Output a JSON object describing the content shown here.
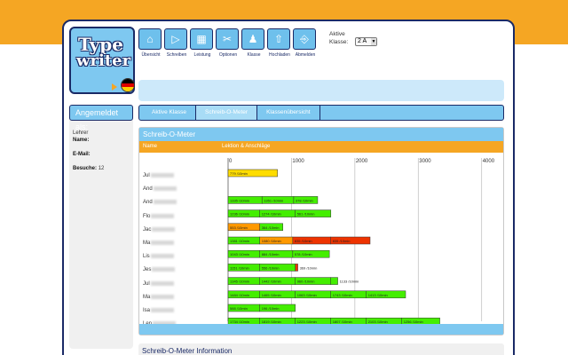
{
  "logo": {
    "line1": "Type",
    "line2": "writer"
  },
  "flag_colors": [
    "#000000",
    "#dd0000",
    "#ffce00"
  ],
  "nav": [
    {
      "label": "Übersicht",
      "icon": "home-icon",
      "glyph": "⌂"
    },
    {
      "label": "Schreiben",
      "icon": "play-icon",
      "glyph": "▷"
    },
    {
      "label": "Leistung",
      "icon": "blocks-icon",
      "glyph": "▦"
    },
    {
      "label": "Optionen",
      "icon": "tools-icon",
      "glyph": "✂"
    },
    {
      "label": "Klasse",
      "icon": "people-icon",
      "glyph": "♟"
    },
    {
      "label": "Hochladen",
      "icon": "upload-icon",
      "glyph": "⇧"
    },
    {
      "label": "Abmelden",
      "icon": "logout-icon",
      "glyph": "⎆"
    }
  ],
  "class_selector": {
    "label_line1": "Aktive",
    "label_line2": "Klasse:",
    "value": "2 A"
  },
  "sidebar": {
    "heading": "Angemeldet als:",
    "role": "Lehrer",
    "name_label": "Name:",
    "email_label": "E-Mail:",
    "visits_label": "Besuche:",
    "visits_value": "12"
  },
  "tabs": [
    {
      "label": "Aktive Klasse",
      "active": false
    },
    {
      "label": "Schreib-O-Meter",
      "active": true
    },
    {
      "label": "Klassenübersicht",
      "active": false
    }
  ],
  "chart_title": "Schreib-O-Meter",
  "columns": {
    "name": "Name",
    "lesson": "Lektion & Anschläge"
  },
  "info_title": "Schreib-O-Meter Information",
  "chart_data": {
    "type": "bar",
    "stacked": true,
    "xlim": [
      0,
      4200
    ],
    "ticks": [
      0,
      1000,
      2000,
      3000,
      4000
    ],
    "grid": true,
    "colors": {
      "green": "#44ee00",
      "yellow": "#ffdd00",
      "orange": "#ff9900",
      "red": "#ee3300"
    },
    "rows": [
      {
        "name": "Jul",
        "segments": [
          {
            "value": 779,
            "label": "779 /10min",
            "color": "yellow"
          }
        ]
      },
      {
        "name": "And",
        "segments": []
      },
      {
        "name": "And",
        "segments": [
          {
            "value": 535,
            "label": "1335 /10min",
            "color": "green"
          },
          {
            "value": 500,
            "label": "1351 /10min",
            "color": "green"
          },
          {
            "value": 378,
            "label": "378 /10min",
            "color": "green"
          }
        ]
      },
      {
        "name": "Flo",
        "segments": [
          {
            "value": 500,
            "label": "1236 /10min",
            "color": "green"
          },
          {
            "value": 560,
            "label": "1274 /10min",
            "color": "green"
          },
          {
            "value": 561,
            "label": "561 /10min",
            "color": "green"
          }
        ]
      },
      {
        "name": "Jac",
        "segments": [
          {
            "value": 500,
            "label": "553 /10min",
            "color": "orange"
          },
          {
            "value": 364,
            "label": "364 /10min",
            "color": "green"
          }
        ]
      },
      {
        "name": "Ma",
        "segments": [
          {
            "value": 500,
            "label": "1381 /10min",
            "color": "green"
          },
          {
            "value": 520,
            "label": "1080 /10min",
            "color": "orange"
          },
          {
            "value": 600,
            "label": "835 /10min",
            "color": "red"
          },
          {
            "value": 620,
            "label": "835 /10min",
            "color": "red"
          }
        ]
      },
      {
        "name": "Lis",
        "segments": [
          {
            "value": 500,
            "label": "1043 /10min",
            "color": "green"
          },
          {
            "value": 520,
            "label": "884 /10min",
            "color": "green"
          },
          {
            "value": 578,
            "label": "578 /10min",
            "color": "green"
          }
        ]
      },
      {
        "name": "Jes",
        "segments": [
          {
            "value": 500,
            "label": "1151 /10min",
            "color": "green"
          },
          {
            "value": 560,
            "label": "556 /10min",
            "color": "green"
          },
          {
            "value": 40,
            "label": "",
            "color": "red"
          }
        ],
        "trailing": "369 /10min"
      },
      {
        "name": "Jul",
        "segments": [
          {
            "value": 500,
            "label": "1345 /10min",
            "color": "green"
          },
          {
            "value": 560,
            "label": "1442 /10min",
            "color": "green"
          },
          {
            "value": 560,
            "label": "960 /10min",
            "color": "green"
          },
          {
            "value": 110,
            "label": "",
            "color": "green"
          }
        ],
        "trailing": "1133 /10min"
      },
      {
        "name": "Ma",
        "segments": [
          {
            "value": 500,
            "label": "1484 /10min",
            "color": "green"
          },
          {
            "value": 560,
            "label": "1465 /10min",
            "color": "green"
          },
          {
            "value": 560,
            "label": "1063 /10min",
            "color": "green"
          },
          {
            "value": 560,
            "label": "1743 /10min",
            "color": "green"
          },
          {
            "value": 620,
            "label": "1413 /10min",
            "color": "green"
          }
        ]
      },
      {
        "name": "Isa",
        "segments": [
          {
            "value": 500,
            "label": "588 /10min",
            "color": "green"
          },
          {
            "value": 560,
            "label": "196 /10min",
            "color": "green"
          }
        ]
      },
      {
        "name": "Len",
        "segments": [
          {
            "value": 500,
            "label": "1734 /10min",
            "color": "green"
          },
          {
            "value": 560,
            "label": "1819 /10min",
            "color": "green"
          },
          {
            "value": 560,
            "label": "1223 /10min",
            "color": "green"
          },
          {
            "value": 560,
            "label": "1807 /10min",
            "color": "green"
          },
          {
            "value": 560,
            "label": "2103 /10min",
            "color": "green"
          },
          {
            "value": 600,
            "label": "1256 /10min",
            "color": "green"
          }
        ]
      }
    ]
  }
}
